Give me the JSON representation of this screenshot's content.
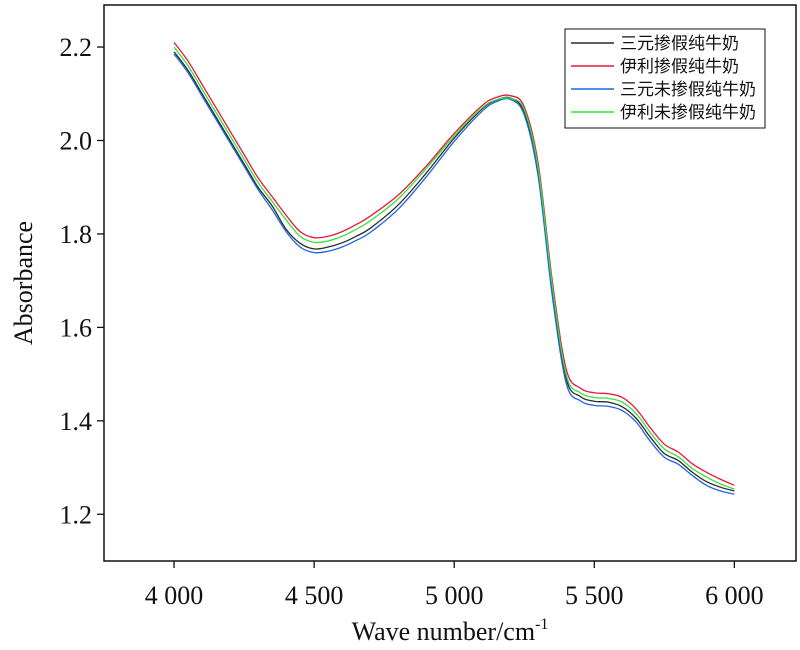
{
  "chart_data": {
    "type": "line",
    "title": "",
    "xlabel": "Wave number/cm",
    "xlabel_sup": "-1",
    "ylabel": "Absorbance",
    "xlim": [
      3750,
      6220
    ],
    "ylim": [
      1.1,
      2.29
    ],
    "xticks": [
      4000,
      4500,
      5000,
      5500,
      6000
    ],
    "xtick_labels": [
      "4 000",
      "4 500",
      "5 000",
      "5 500",
      "6 000"
    ],
    "yticks": [
      1.2,
      1.4,
      1.6,
      1.8,
      2.0,
      2.2
    ],
    "ytick_labels": [
      "1.2",
      "1.4",
      "1.6",
      "1.8",
      "2.0",
      "2.2"
    ],
    "grid": false,
    "legend_position": "top-right",
    "x": [
      4000,
      4050,
      4100,
      4150,
      4200,
      4250,
      4300,
      4350,
      4400,
      4450,
      4500,
      4550,
      4600,
      4650,
      4700,
      4800,
      4900,
      5000,
      5100,
      5150,
      5200,
      5250,
      5300,
      5350,
      5400,
      5450,
      5500,
      5550,
      5600,
      5650,
      5700,
      5750,
      5800,
      5850,
      5900,
      5950,
      6000
    ],
    "series": [
      {
        "name": "三元掺假纯牛奶",
        "color": "#2b2b2b",
        "values": [
          2.19,
          2.15,
          2.1,
          2.05,
          2.0,
          1.95,
          1.9,
          1.86,
          1.81,
          1.78,
          1.768,
          1.772,
          1.781,
          1.795,
          1.812,
          1.862,
          1.93,
          2.005,
          2.068,
          2.086,
          2.091,
          2.06,
          1.93,
          1.68,
          1.49,
          1.452,
          1.442,
          1.44,
          1.43,
          1.405,
          1.365,
          1.33,
          1.315,
          1.29,
          1.27,
          1.258,
          1.25
        ]
      },
      {
        "name": "伊利掺假纯牛奶",
        "color": "#e8173d",
        "values": [
          2.21,
          2.17,
          2.12,
          2.07,
          2.02,
          1.97,
          1.92,
          1.88,
          1.84,
          1.805,
          1.792,
          1.795,
          1.805,
          1.82,
          1.838,
          1.883,
          1.945,
          2.015,
          2.075,
          2.092,
          2.096,
          2.072,
          1.95,
          1.7,
          1.51,
          1.47,
          1.46,
          1.458,
          1.45,
          1.425,
          1.385,
          1.35,
          1.333,
          1.308,
          1.29,
          1.275,
          1.262
        ]
      },
      {
        "name": "三元未掺假纯牛奶",
        "color": "#1e64e6",
        "values": [
          2.185,
          2.145,
          2.095,
          2.045,
          1.995,
          1.945,
          1.895,
          1.852,
          1.805,
          1.772,
          1.76,
          1.763,
          1.772,
          1.786,
          1.803,
          1.853,
          1.922,
          1.998,
          2.063,
          2.083,
          2.088,
          2.055,
          1.922,
          1.668,
          1.48,
          1.443,
          1.433,
          1.431,
          1.422,
          1.397,
          1.356,
          1.322,
          1.307,
          1.283,
          1.262,
          1.25,
          1.243
        ]
      },
      {
        "name": "伊利未掺假纯牛奶",
        "color": "#35e33a",
        "values": [
          2.2,
          2.16,
          2.11,
          2.06,
          2.01,
          1.96,
          1.91,
          1.87,
          1.83,
          1.795,
          1.782,
          1.785,
          1.795,
          1.81,
          1.828,
          1.875,
          1.94,
          2.01,
          2.07,
          2.087,
          2.09,
          2.066,
          1.94,
          1.69,
          1.498,
          1.46,
          1.45,
          1.448,
          1.44,
          1.415,
          1.375,
          1.34,
          1.323,
          1.298,
          1.28,
          1.265,
          1.254
        ]
      }
    ]
  }
}
